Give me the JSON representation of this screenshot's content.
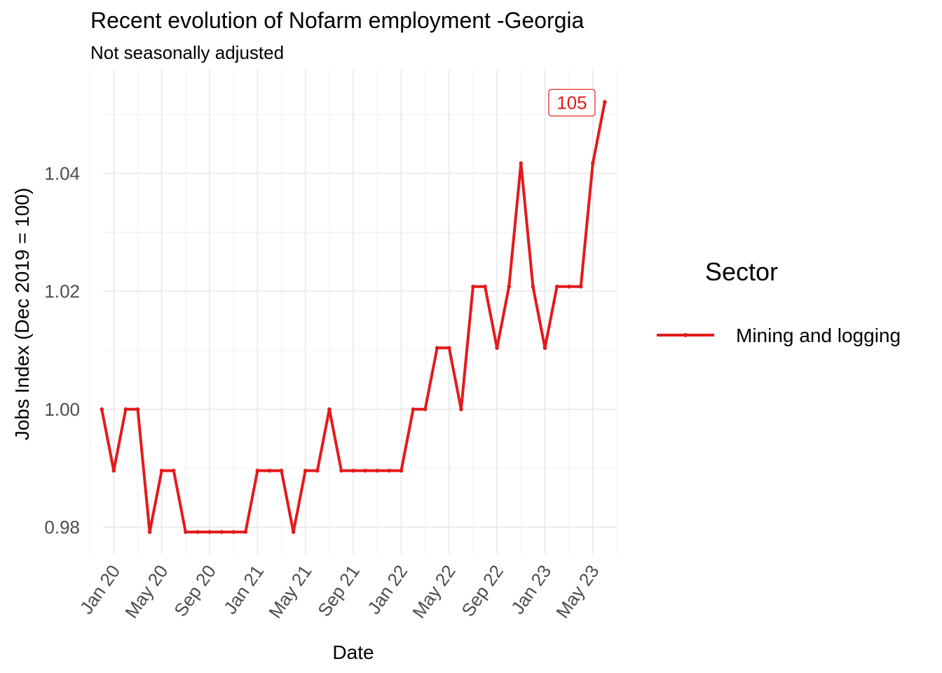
{
  "chart_data": {
    "type": "line",
    "title": "Recent evolution of Nofarm employment -Georgia",
    "subtitle": "Not seasonally adjusted",
    "xlabel": "Date",
    "ylabel": "Jobs Index (Dec 2019 = 100)",
    "x_tick_labels": [
      "Jan 20",
      "May 20",
      "Sep 20",
      "Jan 21",
      "May 21",
      "Sep 21",
      "Jan 22",
      "May 22",
      "Sep 22",
      "Jan 23",
      "May 23"
    ],
    "y_tick_labels": [
      "0.98",
      "1.00",
      "1.02",
      "1.04"
    ],
    "ylim": [
      0.9755,
      1.0575
    ],
    "grid": true,
    "legend": {
      "title": "Sector",
      "position": "right"
    },
    "series": [
      {
        "name": "Mining and logging",
        "color": "#e41a1c",
        "x": [
          "2019-12",
          "2020-01",
          "2020-02",
          "2020-03",
          "2020-04",
          "2020-05",
          "2020-06",
          "2020-07",
          "2020-08",
          "2020-09",
          "2020-10",
          "2020-11",
          "2020-12",
          "2021-01",
          "2021-02",
          "2021-03",
          "2021-04",
          "2021-05",
          "2021-06",
          "2021-07",
          "2021-08",
          "2021-09",
          "2021-10",
          "2021-11",
          "2021-12",
          "2022-01",
          "2022-02",
          "2022-03",
          "2022-04",
          "2022-05",
          "2022-06",
          "2022-07",
          "2022-08",
          "2022-09",
          "2022-10",
          "2022-11",
          "2022-12",
          "2023-01",
          "2023-02",
          "2023-03",
          "2023-04",
          "2023-05",
          "2023-06"
        ],
        "values": [
          1.0,
          0.9896,
          1.0,
          1.0,
          0.9792,
          0.9896,
          0.9896,
          0.9792,
          0.9792,
          0.9792,
          0.9792,
          0.9792,
          0.9792,
          0.9896,
          0.9896,
          0.9896,
          0.9792,
          0.9896,
          0.9896,
          1.0,
          0.9896,
          0.9896,
          0.9896,
          0.9896,
          0.9896,
          0.9896,
          1.0,
          1.0,
          1.0104,
          1.0104,
          1.0,
          1.0208,
          1.0208,
          1.0104,
          1.0208,
          1.0417,
          1.0208,
          1.0104,
          1.0208,
          1.0208,
          1.0208,
          1.0417,
          1.0521
        ]
      }
    ],
    "annotations": [
      {
        "text": "105",
        "x": "2023-06",
        "y": 1.0521,
        "color": "#e41a1c"
      }
    ]
  }
}
